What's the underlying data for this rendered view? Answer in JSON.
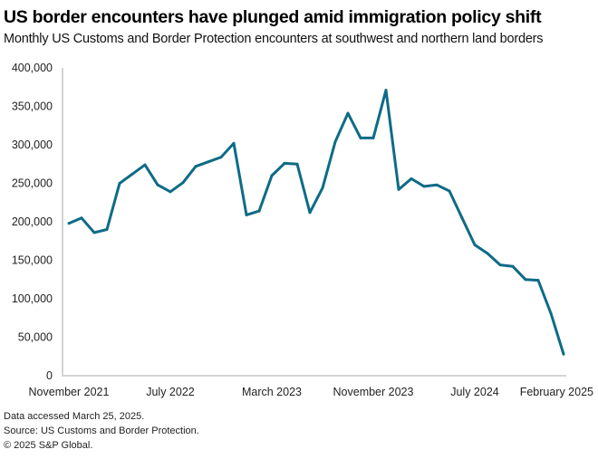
{
  "chart_data": {
    "type": "line",
    "title": "US border encounters have plunged amid immigration policy shift",
    "subtitle": "Monthly US Customs and Border Protection encounters at southwest and northern land borders",
    "xlabel": "",
    "ylabel": "",
    "ylim": [
      0,
      400000
    ],
    "yticks": [
      0,
      50000,
      100000,
      150000,
      200000,
      250000,
      300000,
      350000,
      400000
    ],
    "ytick_labels": [
      "0",
      "50,000",
      "100,000",
      "150,000",
      "200,000",
      "250,000",
      "300,000",
      "350,000",
      "400,000"
    ],
    "xtick_labels": [
      {
        "label": "November 2021",
        "index": 0
      },
      {
        "label": "July 2022",
        "index": 8
      },
      {
        "label": "March 2023",
        "index": 16
      },
      {
        "label": "November 2023",
        "index": 24
      },
      {
        "label": "July 2024",
        "index": 32
      },
      {
        "label": "February 2025",
        "index": 39
      }
    ],
    "grid": false,
    "legend": "none",
    "series": [
      {
        "name": "Encounters",
        "color": "#0e6b86",
        "x": [
          "2021-11",
          "2021-12",
          "2022-01",
          "2022-02",
          "2022-03",
          "2022-04",
          "2022-05",
          "2022-06",
          "2022-07",
          "2022-08",
          "2022-09",
          "2022-10",
          "2022-11",
          "2022-12",
          "2023-01",
          "2023-02",
          "2023-03",
          "2023-04",
          "2023-05",
          "2023-06",
          "2023-07",
          "2023-08",
          "2023-09",
          "2023-10",
          "2023-11",
          "2023-12",
          "2024-01",
          "2024-02",
          "2024-03",
          "2024-04",
          "2024-05",
          "2024-06",
          "2024-07",
          "2024-08",
          "2024-09",
          "2024-10",
          "2024-11",
          "2024-12",
          "2025-01",
          "2025-02"
        ],
        "values": [
          198000,
          205000,
          186000,
          190000,
          250000,
          262000,
          274000,
          248000,
          239000,
          251000,
          272000,
          278000,
          284000,
          302000,
          209000,
          214000,
          260000,
          276000,
          275000,
          212000,
          244000,
          304000,
          341000,
          309000,
          309000,
          371000,
          242000,
          256000,
          246000,
          248000,
          240000,
          205000,
          170000,
          159000,
          144000,
          142000,
          125000,
          124000,
          81000,
          28000
        ]
      }
    ]
  },
  "footer": {
    "lines": [
      "Data accessed March 25, 2025.",
      "Source: US Customs and Border Protection.",
      "© 2025 S&P Global."
    ]
  }
}
